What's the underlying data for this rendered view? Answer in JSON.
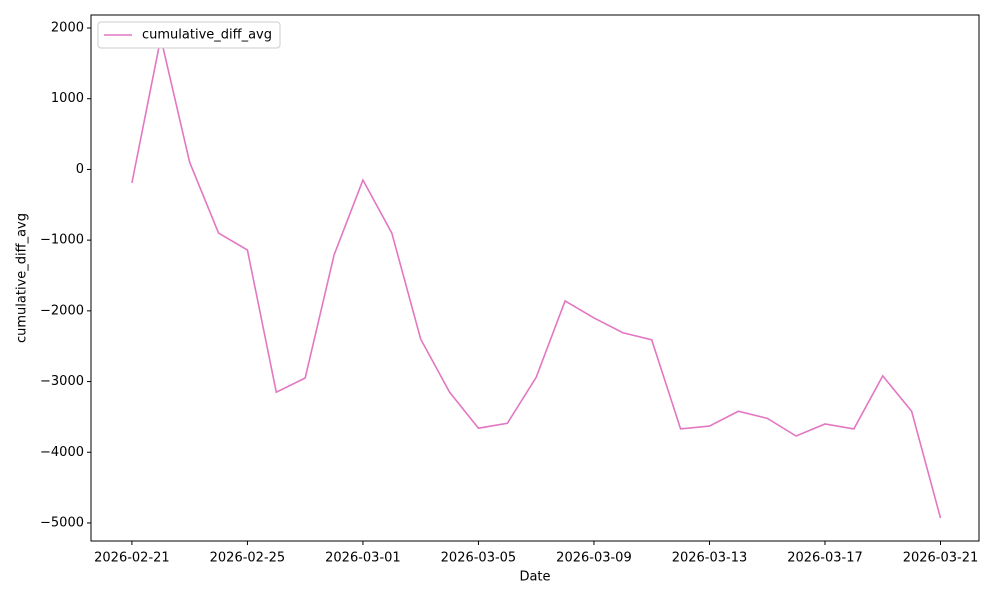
{
  "chart_data": {
    "type": "line",
    "xlabel": "Date",
    "ylabel": "cumulative_diff_avg",
    "x": [
      "2026-02-21",
      "2026-02-22",
      "2026-02-23",
      "2026-02-24",
      "2026-02-25",
      "2026-02-26",
      "2026-02-27",
      "2026-02-28",
      "2026-03-01",
      "2026-03-02",
      "2026-03-03",
      "2026-03-04",
      "2026-03-05",
      "2026-03-06",
      "2026-03-07",
      "2026-03-08",
      "2026-03-09",
      "2026-03-10",
      "2026-03-11",
      "2026-03-12",
      "2026-03-13",
      "2026-03-14",
      "2026-03-15",
      "2026-03-16",
      "2026-03-17",
      "2026-03-18",
      "2026-03-19",
      "2026-03-20",
      "2026-03-21"
    ],
    "series": [
      {
        "name": "cumulative_diff_avg",
        "color": "#e377c2",
        "values": [
          -190,
          1860,
          100,
          -900,
          -1140,
          -3150,
          -2950,
          -1210,
          -150,
          -900,
          -2400,
          -3150,
          -3660,
          -3590,
          -2940,
          -1860,
          -2100,
          -2310,
          -2410,
          -3670,
          -3630,
          -3420,
          -3520,
          -3770,
          -3600,
          -3670,
          -2920,
          -3420,
          -4930
        ]
      }
    ],
    "xlim": [
      "2026-02-19T14:00:00Z",
      "2026-03-22T08:00:00Z"
    ],
    "xticks": [
      "2026-02-21",
      "2026-02-25",
      "2026-03-01",
      "2026-03-05",
      "2026-03-09",
      "2026-03-13",
      "2026-03-17",
      "2026-03-21"
    ],
    "ylim": [
      -5255,
      2184
    ],
    "yticks": [
      {
        "value": -5000,
        "label": "−5000"
      },
      {
        "value": -4000,
        "label": "−4000"
      },
      {
        "value": -3000,
        "label": "−3000"
      },
      {
        "value": -2000,
        "label": "−2000"
      },
      {
        "value": -1000,
        "label": "−1000"
      },
      0,
      1000,
      2000
    ],
    "legend": "upper left",
    "grid": false
  }
}
